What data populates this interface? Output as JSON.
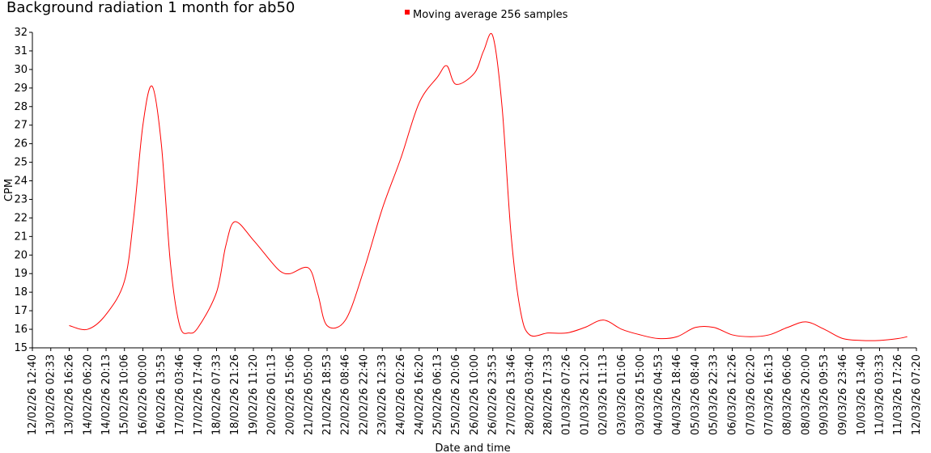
{
  "chart_data": {
    "type": "line",
    "title": "Background radiation 1 month for ab50",
    "xlabel": "Date and time",
    "ylabel": "CPM",
    "ylim": [
      15,
      32
    ],
    "grid": false,
    "legend_position": "top-center",
    "line_color": "#ff0000",
    "yticks": [
      "15",
      "16",
      "17",
      "18",
      "19",
      "20",
      "21",
      "22",
      "23",
      "24",
      "25",
      "26",
      "27",
      "28",
      "29",
      "30",
      "31",
      "32"
    ],
    "xticks": [
      "12/02/26 12:40",
      "13/02/26 02:33",
      "13/02/26 16:26",
      "14/02/26 06:20",
      "14/02/26 20:13",
      "15/02/26 10:06",
      "16/02/26 00:00",
      "16/02/26 13:53",
      "17/02/26 03:46",
      "17/02/26 17:40",
      "18/02/26 07:33",
      "18/02/26 21:26",
      "19/02/26 11:20",
      "20/02/26 01:13",
      "20/02/26 15:06",
      "21/02/26 05:00",
      "21/02/26 18:53",
      "22/02/26 08:46",
      "22/02/26 22:40",
      "23/02/26 12:33",
      "24/02/26 02:26",
      "24/02/26 16:20",
      "25/02/26 06:13",
      "25/02/26 20:06",
      "26/02/26 10:00",
      "26/02/26 23:53",
      "27/02/26 13:46",
      "28/02/26 03:40",
      "28/02/26 17:33",
      "01/03/26 07:26",
      "01/03/26 21:20",
      "02/03/26 11:13",
      "03/03/26 01:06",
      "03/03/26 15:00",
      "04/03/26 04:53",
      "04/03/26 18:46",
      "05/03/26 08:40",
      "05/03/26 22:33",
      "06/03/26 12:26",
      "07/03/26 02:20",
      "07/03/26 16:13",
      "08/03/26 06:06",
      "08/03/26 20:00",
      "09/03/26 09:53",
      "09/03/26 23:46",
      "10/03/26 13:40",
      "11/03/26 03:33",
      "11/03/26 17:26",
      "12/03/26 07:20"
    ],
    "series": [
      {
        "name": "Moving average 256 samples",
        "color": "#ff0000",
        "x": [
          "13/02/26 16:26",
          "14/02/26 06:20",
          "14/02/26 20:13",
          "15/02/26 10:06",
          "15/02/26 17:00",
          "16/02/26 00:00",
          "16/02/26 06:56",
          "16/02/26 13:53",
          "16/02/26 20:50",
          "17/02/26 03:46",
          "17/02/26 10:43",
          "17/02/26 17:40",
          "18/02/26 07:33",
          "18/02/26 14:30",
          "18/02/26 21:26",
          "19/02/26 11:20",
          "20/02/26 01:13",
          "20/02/26 08:10",
          "20/02/26 15:06",
          "21/02/26 05:00",
          "21/02/26 11:56",
          "21/02/26 18:53",
          "22/02/26 08:46",
          "22/02/26 22:40",
          "23/02/26 12:33",
          "24/02/26 02:26",
          "24/02/26 16:20",
          "25/02/26 06:13",
          "25/02/26 13:10",
          "25/02/26 20:06",
          "26/02/26 10:00",
          "26/02/26 16:56",
          "26/02/26 23:53",
          "27/02/26 06:50",
          "27/02/26 13:46",
          "27/02/26 20:43",
          "28/02/26 03:40",
          "28/02/26 17:33",
          "01/03/26 07:26",
          "01/03/26 21:20",
          "02/03/26 11:13",
          "03/03/26 01:06",
          "03/03/26 15:00",
          "04/03/26 04:53",
          "04/03/26 18:46",
          "05/03/26 08:40",
          "05/03/26 22:33",
          "06/03/26 12:26",
          "07/03/26 02:20",
          "07/03/26 16:13",
          "08/03/26 06:06",
          "08/03/26 20:00",
          "09/03/26 09:53",
          "09/03/26 23:46",
          "10/03/26 13:40",
          "11/03/26 03:33",
          "11/03/26 17:26",
          "12/03/26 00:23"
        ],
        "values": [
          16.2,
          16.0,
          16.8,
          18.6,
          22.0,
          27.0,
          29.1,
          26.0,
          19.5,
          16.2,
          15.8,
          16.1,
          18.0,
          20.5,
          21.8,
          20.8,
          19.6,
          19.1,
          19.0,
          19.3,
          17.9,
          16.2,
          16.5,
          19.2,
          22.5,
          25.2,
          28.2,
          29.6,
          30.2,
          29.2,
          29.8,
          31.0,
          31.8,
          28.0,
          21.0,
          17.0,
          15.7,
          15.8,
          15.8,
          16.1,
          16.5,
          16.0,
          15.7,
          15.5,
          15.6,
          16.1,
          16.1,
          15.7,
          15.6,
          15.7,
          16.1,
          16.4,
          16.0,
          15.5,
          15.4,
          15.4,
          15.5,
          15.6
        ]
      }
    ]
  }
}
